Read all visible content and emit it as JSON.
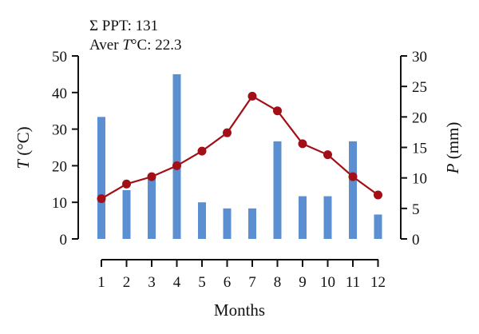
{
  "chart_data": {
    "type": "bar+line",
    "annotation": {
      "line1": "Σ PPT: 131",
      "line2_prefix": "Aver ",
      "line2_var": "T",
      "line2_suffix": "°C: 22.3"
    },
    "xlabel": "Months",
    "categories": [
      "1",
      "2",
      "3",
      "4",
      "5",
      "6",
      "7",
      "8",
      "9",
      "10",
      "11",
      "12"
    ],
    "left_axis": {
      "var": "T",
      "unit": " (°C)",
      "ylim": [
        0,
        50
      ],
      "ticks": [
        0,
        10,
        20,
        30,
        40,
        50
      ]
    },
    "right_axis": {
      "var": "P",
      "unit": " (mm)",
      "ylim": [
        0,
        30
      ],
      "ticks": [
        0,
        5,
        10,
        15,
        20,
        25,
        30
      ]
    },
    "series": [
      {
        "type": "bar",
        "axis": "right",
        "color": "#5b8fd1",
        "values": [
          20,
          8,
          10,
          27,
          6,
          5,
          5,
          16,
          7,
          7,
          16,
          4
        ]
      },
      {
        "type": "line",
        "axis": "left",
        "color": "#a30f17",
        "values": [
          11,
          15,
          17,
          20,
          24,
          29,
          39,
          35,
          26,
          23,
          17,
          12
        ]
      }
    ]
  }
}
